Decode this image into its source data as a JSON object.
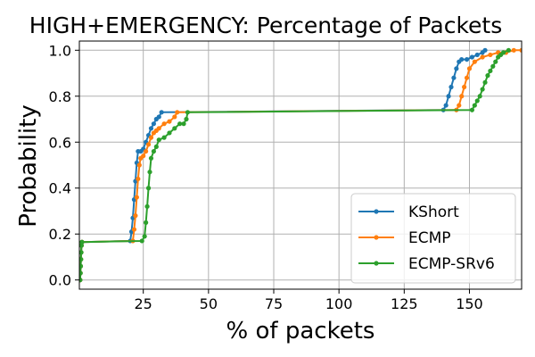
{
  "chart_data": {
    "type": "line",
    "title": "HIGH+EMERGENCY: Percentage of Packets",
    "xlabel": "% of packets",
    "ylabel": "Probability",
    "xlim": [
      0.5,
      170
    ],
    "ylim": [
      -0.04,
      1.04
    ],
    "grid": true,
    "legend_position": "lower-right",
    "x_ticks": [
      25,
      50,
      75,
      100,
      125,
      150
    ],
    "x_tick_labels": [
      "25",
      "50",
      "75",
      "100",
      "125",
      "150"
    ],
    "y_ticks": [
      0.0,
      0.2,
      0.4,
      0.6,
      0.8,
      1.0
    ],
    "y_tick_labels": [
      "0.0",
      "0.2",
      "0.4",
      "0.6",
      "0.8",
      "1.0"
    ],
    "series": [
      {
        "name": "KShort",
        "color": "#1f77b4",
        "x": [
          0.8,
          0.9,
          1.0,
          1.1,
          1.2,
          1.3,
          1.5,
          20.0,
          20.5,
          21.0,
          21.5,
          22.0,
          22.5,
          23.0,
          24.0,
          25.0,
          26.0,
          27.0,
          28.0,
          29.0,
          30.0,
          31.0,
          32.0,
          140.0,
          141.0,
          142.0,
          143.0,
          144.0,
          145.0,
          146.0,
          147.0,
          149.0,
          151.0,
          153.0,
          155.0,
          156.0
        ],
        "y": [
          0.0,
          0.03,
          0.06,
          0.09,
          0.12,
          0.15,
          0.165,
          0.17,
          0.21,
          0.27,
          0.35,
          0.43,
          0.51,
          0.56,
          0.56,
          0.57,
          0.6,
          0.63,
          0.66,
          0.68,
          0.7,
          0.71,
          0.73,
          0.74,
          0.76,
          0.8,
          0.84,
          0.88,
          0.92,
          0.95,
          0.96,
          0.96,
          0.97,
          0.98,
          0.99,
          1.0
        ]
      },
      {
        "name": "ECMP",
        "color": "#ff7f0e",
        "x": [
          0.8,
          0.9,
          1.0,
          1.1,
          1.2,
          1.3,
          1.5,
          21.0,
          21.5,
          22.0,
          22.5,
          23.0,
          23.5,
          24.0,
          25.0,
          26.0,
          27.0,
          28.0,
          29.0,
          30.0,
          31.0,
          33.0,
          35.0,
          37.0,
          38.0,
          145.0,
          146.0,
          147.0,
          148.0,
          149.0,
          150.0,
          152.0,
          155.0,
          158.0,
          161.0,
          164.0,
          167.0,
          170.0
        ],
        "y": [
          0.0,
          0.03,
          0.06,
          0.09,
          0.12,
          0.15,
          0.165,
          0.17,
          0.22,
          0.28,
          0.36,
          0.44,
          0.5,
          0.53,
          0.54,
          0.56,
          0.59,
          0.62,
          0.64,
          0.65,
          0.66,
          0.68,
          0.69,
          0.71,
          0.73,
          0.74,
          0.76,
          0.8,
          0.84,
          0.88,
          0.92,
          0.95,
          0.97,
          0.98,
          0.99,
          0.99,
          1.0,
          1.0
        ]
      },
      {
        "name": "ECMP-SRv6",
        "color": "#2ca02c",
        "x": [
          0.8,
          0.9,
          1.0,
          1.1,
          1.2,
          1.3,
          1.5,
          24.5,
          25.5,
          26.0,
          26.5,
          27.0,
          27.5,
          28.0,
          29.0,
          30.0,
          31.0,
          33.0,
          35.0,
          37.0,
          39.0,
          40.5,
          41.5,
          42.0,
          151.0,
          152.0,
          153.0,
          154.0,
          155.0,
          156.0,
          157.0,
          158.0,
          159.0,
          160.0,
          161.0,
          162.0,
          163.0,
          165.0
        ],
        "y": [
          0.0,
          0.03,
          0.06,
          0.09,
          0.12,
          0.15,
          0.165,
          0.17,
          0.19,
          0.25,
          0.32,
          0.4,
          0.47,
          0.53,
          0.56,
          0.58,
          0.61,
          0.62,
          0.64,
          0.66,
          0.68,
          0.68,
          0.7,
          0.73,
          0.74,
          0.76,
          0.78,
          0.8,
          0.83,
          0.86,
          0.89,
          0.91,
          0.93,
          0.95,
          0.97,
          0.98,
          0.99,
          1.0
        ]
      }
    ]
  }
}
